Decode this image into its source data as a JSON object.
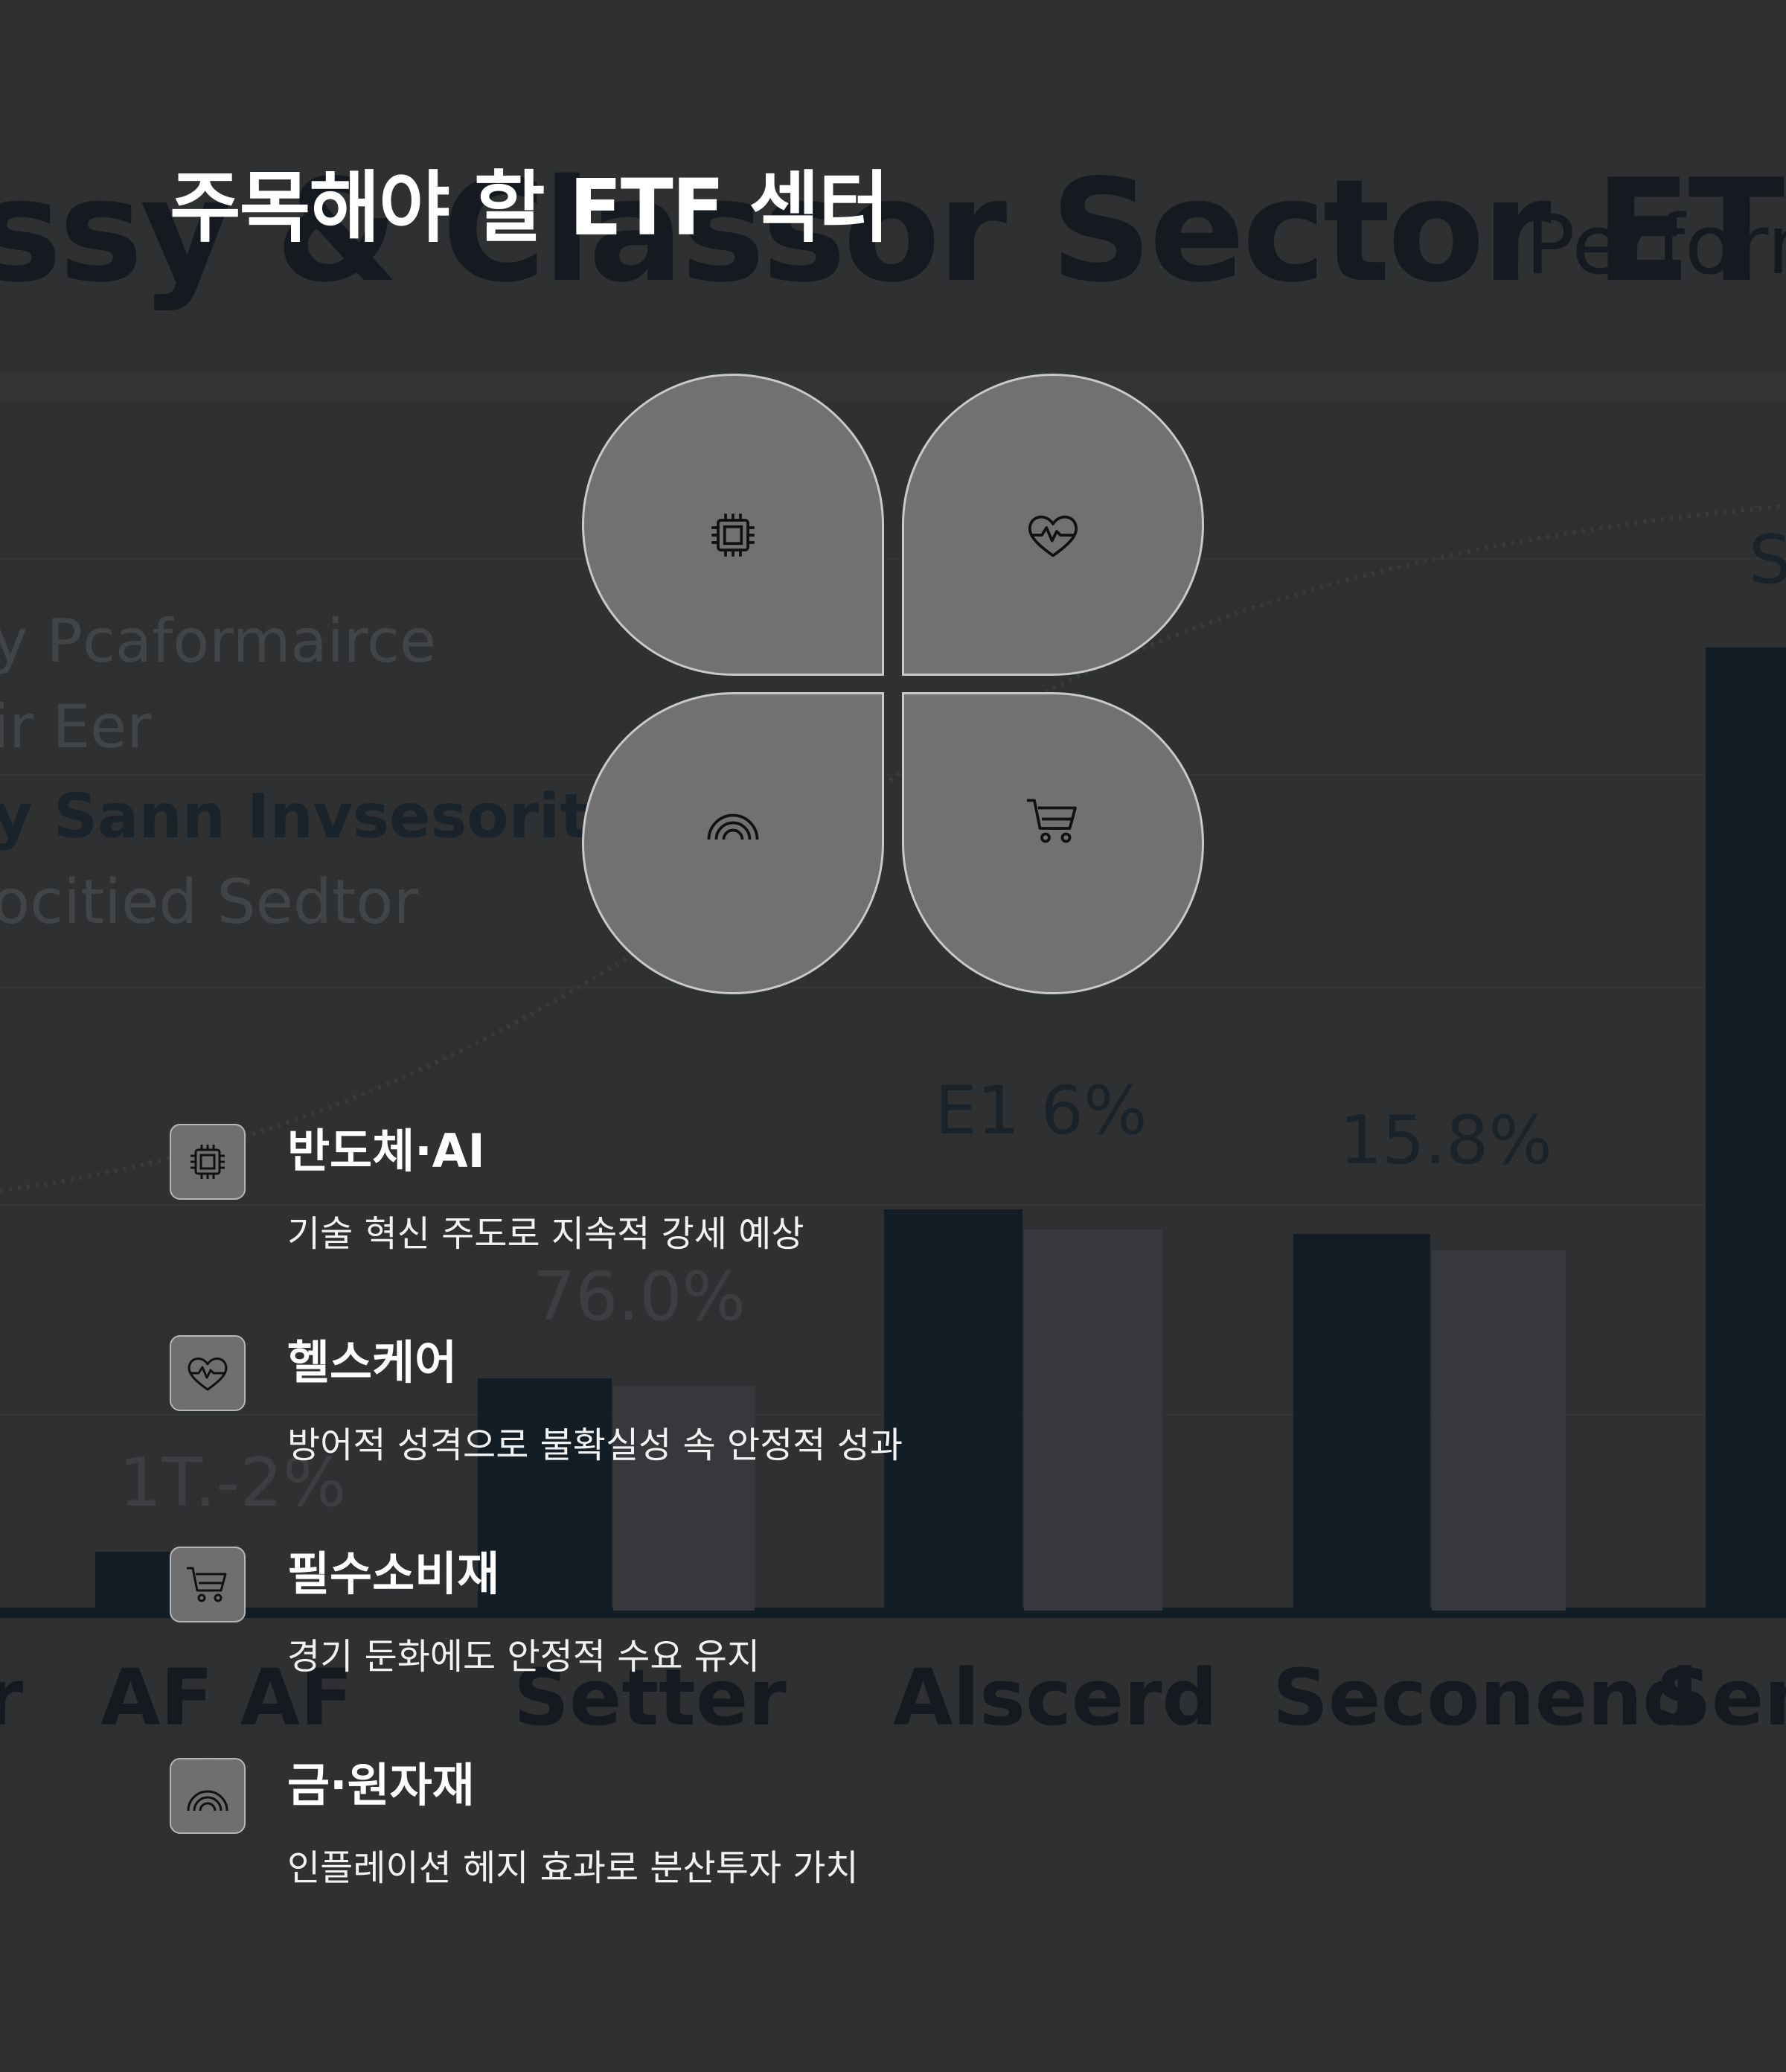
{
  "title": "주목해야 할 ETF 섹터",
  "sectors": [
    {
      "icon": "chip-icon",
      "title": "반도체·AI",
      "desc": "기술 혁신 주도로 지속적 강세 예상"
    },
    {
      "icon": "heart-pulse-icon",
      "title": "헬스케어",
      "desc": "방어적 성격으로 불확실성 속 안정적 성과"
    },
    {
      "icon": "cart-icon",
      "title": "필수소비재",
      "desc": "경기 둔화에도 안정적 수요 유지"
    },
    {
      "icon": "rainbow-icon",
      "title": "금·원자재",
      "desc": "인플레이션 헤지 효과로 분산투자 가치"
    }
  ],
  "background": {
    "heading": "ssy & Classor Sector ETF",
    "heading_light": "Perforn",
    "legend": [
      "y Pcaformairce",
      "ir Eer",
      "y Sann Invsesority",
      "ocitied Sedtor"
    ],
    "value_labels": [
      "1T.-2%",
      "76.0%",
      "E1 6%",
      "15.8%",
      "S"
    ],
    "category_labels": [
      "r",
      "AF AF",
      "Setter",
      "Alscerd",
      "Seconend",
      "Sem"
    ]
  },
  "colors": {
    "background": "#2c2d2f",
    "petal_fill": "#717073",
    "petal_stroke": "#c9c8cb",
    "bar_dark": "#0d1c28"
  }
}
